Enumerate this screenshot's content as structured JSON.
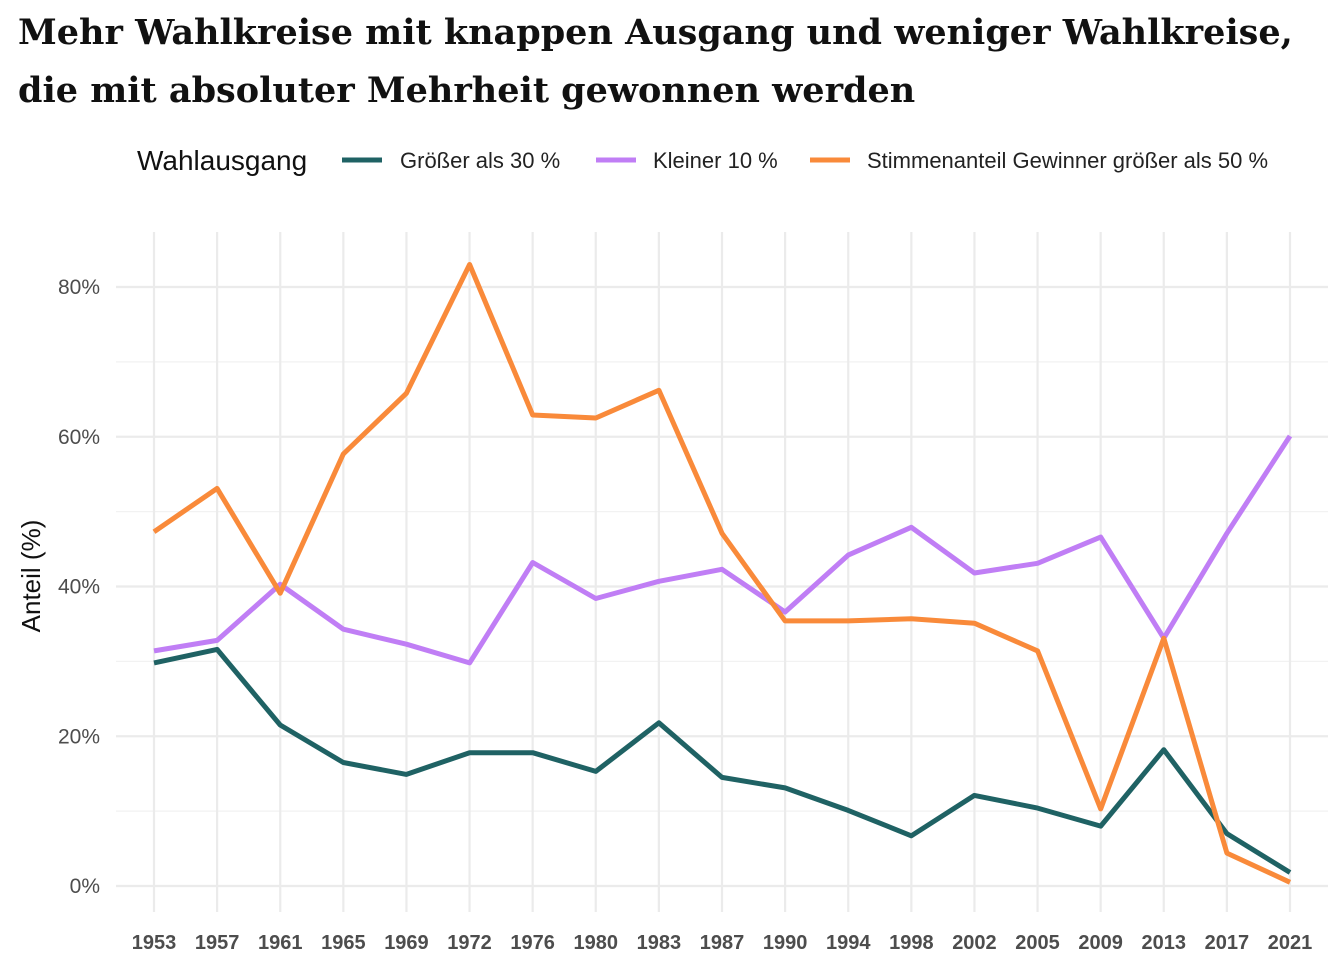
{
  "chart_data": {
    "type": "line",
    "title_lines": [
      "Mehr Wahlkreise mit knappen Ausgang und weniger Wahlkreise,",
      "die mit absoluter Mehrheit gewonnen werden"
    ],
    "xlabel": "",
    "ylabel": "Anteil (%)",
    "ylim": [
      0,
      83
    ],
    "y_ticks": [
      0,
      20,
      40,
      60,
      80
    ],
    "y_tick_labels": [
      "0%",
      "20%",
      "40%",
      "60%",
      "80%"
    ],
    "grid": true,
    "legend": {
      "title": "Wahlausgang",
      "position": "top"
    },
    "categories": [
      "1953",
      "1957",
      "1961",
      "1965",
      "1969",
      "1972",
      "1976",
      "1980",
      "1983",
      "1987",
      "1990",
      "1994",
      "1998",
      "2002",
      "2005",
      "2009",
      "2013",
      "2017",
      "2021"
    ],
    "series": [
      {
        "name": "Größer als 30 %",
        "color": "#1f6264",
        "values": [
          29.8,
          31.6,
          21.5,
          16.5,
          14.9,
          17.8,
          17.8,
          15.3,
          21.8,
          14.5,
          13.1,
          10.1,
          6.7,
          12.1,
          10.4,
          8.0,
          18.2,
          7.0,
          1.8
        ]
      },
      {
        "name": "Kleiner 10 %",
        "color": "#c07ef5",
        "values": [
          31.4,
          32.8,
          40.3,
          34.3,
          32.3,
          29.8,
          43.2,
          38.4,
          40.7,
          42.3,
          36.6,
          44.2,
          47.9,
          41.8,
          43.1,
          46.6,
          33.1,
          47.1,
          60.1
        ]
      },
      {
        "name": "Stimmenanteil Gewinner größer als 50 %",
        "color": "#f98a3a",
        "values": [
          47.3,
          53.1,
          39.1,
          57.7,
          65.8,
          83.0,
          62.9,
          62.5,
          66.2,
          47.1,
          35.4,
          35.4,
          35.7,
          35.1,
          31.4,
          10.3,
          33.1,
          4.4,
          0.5
        ]
      }
    ]
  }
}
